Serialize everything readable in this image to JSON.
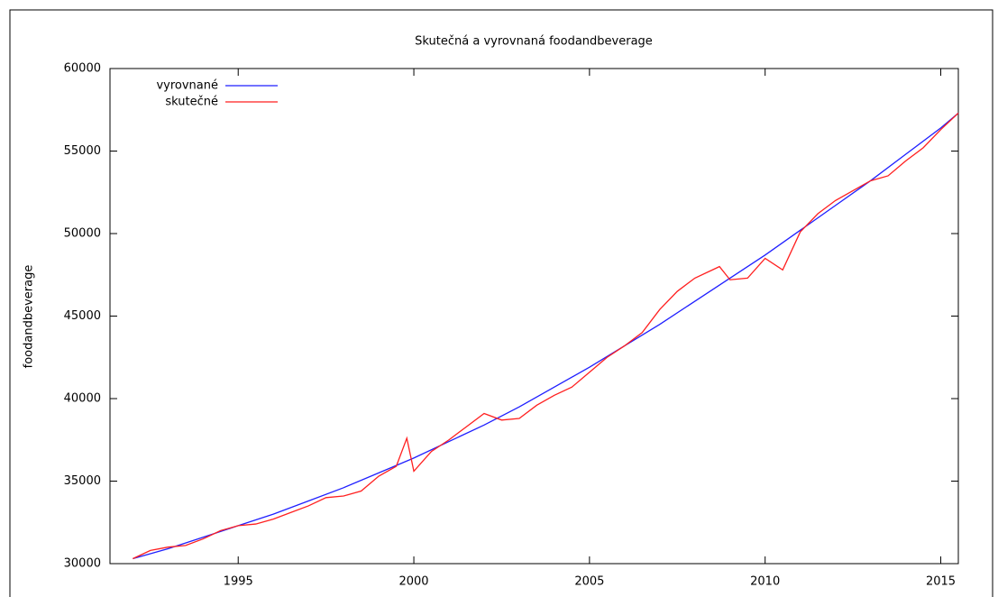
{
  "chart_data": {
    "type": "line",
    "title": "Skutečná a vyrovnaná foodandbeverage",
    "ylabel": "foodandbeverage",
    "xlim": [
      1991.35,
      2015.5
    ],
    "xticks": [
      1995,
      2000,
      2005,
      2010,
      2015
    ],
    "ylim": [
      30000,
      60000
    ],
    "yticks": [
      30000,
      35000,
      40000,
      45000,
      50000,
      55000,
      60000
    ],
    "legend": "top-left",
    "series": [
      {
        "name": "vyrovnané",
        "color": "#1f1fff",
        "x": [
          1992,
          1993,
          1994,
          1995,
          1996,
          1997,
          1998,
          1999,
          2000,
          2001,
          2002,
          2003,
          2004,
          2005,
          2006,
          2007,
          2008,
          2009,
          2010,
          2011,
          2012,
          2013,
          2014,
          2015,
          2015.5
        ],
        "values": [
          30300,
          30900,
          31600,
          32300,
          33000,
          33800,
          34600,
          35500,
          36400,
          37400,
          38400,
          39500,
          40700,
          41900,
          43200,
          44500,
          45900,
          47300,
          48700,
          50200,
          51700,
          53200,
          54800,
          56400,
          57300
        ]
      },
      {
        "name": "skutečné",
        "color": "#ff1f1f",
        "x": [
          1992.0,
          1992.5,
          1993.0,
          1993.5,
          1994.0,
          1994.5,
          1995.0,
          1995.5,
          1996.0,
          1996.5,
          1997.0,
          1997.5,
          1998.0,
          1998.5,
          1999.0,
          1999.5,
          1999.8,
          2000.0,
          2000.5,
          2001.0,
          2001.5,
          2002.0,
          2002.5,
          2003.0,
          2003.5,
          2004.0,
          2004.5,
          2005.0,
          2005.5,
          2006.0,
          2006.5,
          2007.0,
          2007.5,
          2008.0,
          2008.7,
          2009.0,
          2009.5,
          2010.0,
          2010.5,
          2011.0,
          2011.5,
          2012.0,
          2012.5,
          2013.0,
          2013.5,
          2014.0,
          2014.5,
          2015.0,
          2015.5
        ],
        "values": [
          30300,
          30800,
          31000,
          31100,
          31500,
          32000,
          32300,
          32400,
          32700,
          33100,
          33500,
          34000,
          34100,
          34400,
          35300,
          35900,
          37600,
          35600,
          36800,
          37500,
          38300,
          39100,
          38700,
          38800,
          39600,
          40200,
          40700,
          41600,
          42500,
          43200,
          44000,
          45400,
          46500,
          47300,
          48000,
          47200,
          47300,
          48500,
          47800,
          50100,
          51200,
          52000,
          52600,
          53200,
          53500,
          54400,
          55200,
          56300,
          57300
        ]
      }
    ]
  }
}
